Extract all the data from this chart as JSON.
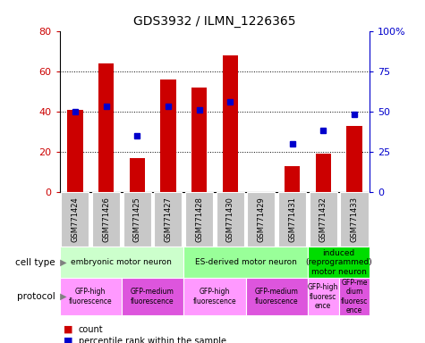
{
  "title": "GDS3932 / ILMN_1226365",
  "samples": [
    "GSM771424",
    "GSM771426",
    "GSM771425",
    "GSM771427",
    "GSM771428",
    "GSM771430",
    "GSM771429",
    "GSM771431",
    "GSM771432",
    "GSM771433"
  ],
  "counts": [
    41,
    64,
    17,
    56,
    52,
    68,
    0,
    13,
    19,
    33
  ],
  "percentiles": [
    50,
    53,
    35,
    53,
    51,
    56,
    0,
    30,
    38,
    48
  ],
  "ylim_left": [
    0,
    80
  ],
  "ylim_right": [
    0,
    100
  ],
  "yticks_left": [
    0,
    20,
    40,
    60,
    80
  ],
  "yticks_right": [
    0,
    25,
    50,
    75,
    100
  ],
  "bar_color": "#cc0000",
  "dot_color": "#0000cc",
  "cell_types": [
    {
      "label": "embryonic motor neuron",
      "start": 0,
      "end": 4,
      "color": "#ccffcc"
    },
    {
      "label": "ES-derived motor neuron",
      "start": 4,
      "end": 8,
      "color": "#99ff99"
    },
    {
      "label": "induced\n(reprogrammed)\nmotor neuron",
      "start": 8,
      "end": 10,
      "color": "#00dd00"
    }
  ],
  "protocols": [
    {
      "label": "GFP-high\nfluorescence",
      "start": 0,
      "end": 2,
      "color": "#ff99ff"
    },
    {
      "label": "GFP-medium\nfluorescence",
      "start": 2,
      "end": 4,
      "color": "#dd55dd"
    },
    {
      "label": "GFP-high\nfluorescence",
      "start": 4,
      "end": 6,
      "color": "#ff99ff"
    },
    {
      "label": "GFP-medium\nfluorescence",
      "start": 6,
      "end": 8,
      "color": "#dd55dd"
    },
    {
      "label": "GFP-high\nfluoresc\nence",
      "start": 8,
      "end": 9,
      "color": "#ff99ff"
    },
    {
      "label": "GFP-me\ndium\nfluoresc\nence",
      "start": 9,
      "end": 10,
      "color": "#dd55dd"
    }
  ],
  "tick_bg_color": "#c8c8c8",
  "bar_color_legend": "#cc0000",
  "dot_color_legend": "#0000cc"
}
